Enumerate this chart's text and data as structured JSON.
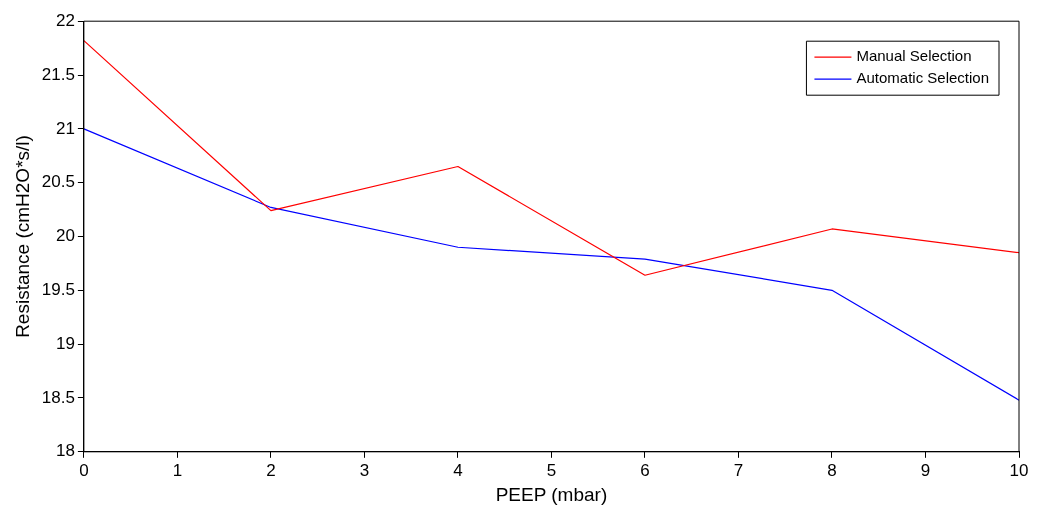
{
  "chart_data": {
    "type": "line",
    "xlabel": "PEEP (mbar)",
    "ylabel": "Resistance (cmH2O*s/l)",
    "x": [
      0,
      2,
      4,
      6,
      8,
      10
    ],
    "series": [
      {
        "name": "Manual Selection",
        "color": "#ff0000",
        "values": [
          21.82,
          20.24,
          20.65,
          19.64,
          20.07,
          19.85
        ]
      },
      {
        "name": "Automatic Selection",
        "color": "#0000ff",
        "values": [
          21.0,
          20.27,
          19.9,
          19.79,
          19.5,
          18.48
        ]
      }
    ],
    "xlim": [
      0,
      10
    ],
    "xticks": [
      0,
      1,
      2,
      3,
      4,
      5,
      6,
      7,
      8,
      9,
      10
    ],
    "ylim": [
      18,
      22
    ],
    "yticks": [
      18,
      18.5,
      19,
      19.5,
      20,
      20.5,
      21,
      21.5,
      22
    ],
    "grid": false,
    "legend": "top right",
    "marker": "none",
    "line_style": "solid"
  }
}
